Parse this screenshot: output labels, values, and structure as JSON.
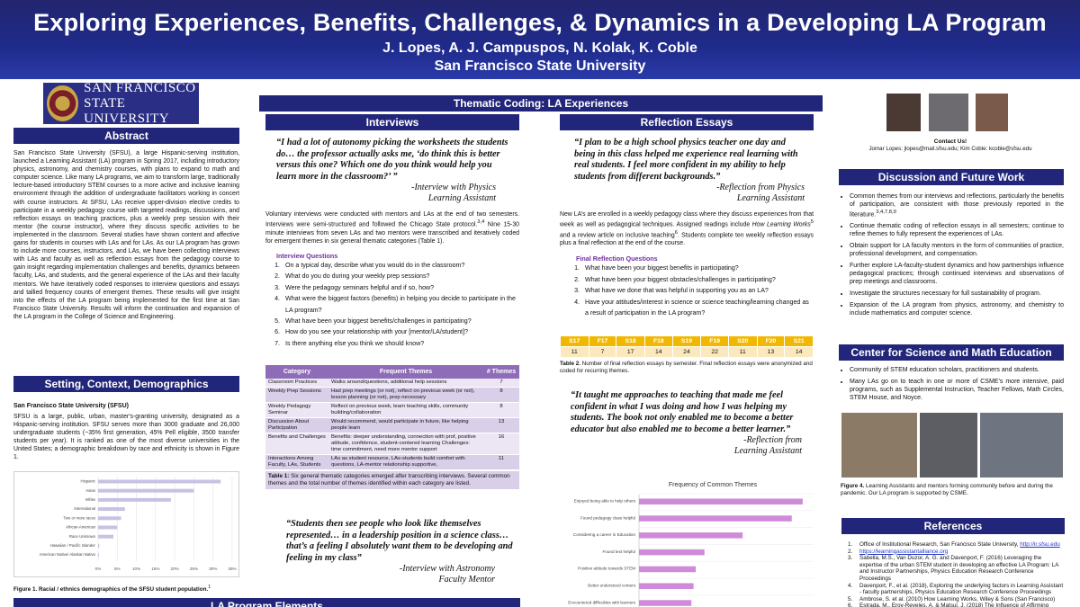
{
  "header": {
    "title": "Exploring Experiences, Benefits, Challenges, & Dynamics in a Developing LA Program",
    "authors": "J. Lopes, A. J. Campuspos, N. Kolak, K. Coble",
    "institution": "San Francisco State University"
  },
  "logo": {
    "line1": "San Francisco",
    "line2": "State University"
  },
  "abstract": {
    "heading": "Abstract",
    "text": "San Francisco State University (SFSU), a large Hispanic-serving institution, launched a Learning Assistant (LA) program in Spring 2017, including introductory physics, astronomy, and chemistry courses, with plans to expand to math and computer science. Like many LA programs, we aim to transform large, traditionally lecture-based introductory STEM courses to a more active and inclusive learning environment through the addition of undergraduate facilitators working in concert with course instructors. At SFSU, LAs receive upper-division elective credits to participate in a weekly pedagogy course with targeted readings, discussions, and reflection essays on teaching practices, plus a weekly prep session with their mentor (the course instructor), where they discuss specific activities to be implemented in the classroom. Several studies have shown content and affective gains for students in courses with LAs and for LAs. As our LA program has grown to include more courses, instructors, and LAs, we have been collecting interviews with LAs and faculty as well as reflection essays from the pedagogy course to gain insight regarding implementation challenges and benefits, dynamics between faculty, LAs, and students, and the general experience of the LAs and their faculty mentors. We have iteratively coded responses to interview questions and essays and tallied frequency counts of emergent themes. These results will give insight into the effects of the LA program being implemented for the first time at San Francisco State University. Results will inform the continuation and expansion of the LA program in the College of Science and Engineering."
  },
  "setting": {
    "heading": "Setting, Context, Demographics",
    "subheading": "San Francisco State University (SFSU)",
    "text": "SFSU is a large, public, urban, master's-granting university, designated as a Hispanic-serving institution. SFSU serves more than 3000 graduate and 26,000 undergraduate students (~35% first generation, 45% Pell eligible, 3500 transfer students per year). It is ranked as one of the most diverse universities in the United States; a demographic breakdown by race and ethnicity is shown in Figure 1."
  },
  "chart_data": [
    {
      "type": "bar",
      "orientation": "horizontal",
      "categories": [
        "Hispanic",
        "Asian",
        "White",
        "International",
        "Two or more races",
        "African-American",
        "Race Unknown",
        "Hawaiian / Pacific Islander",
        "American Native/ Alaskan Native"
      ],
      "values": [
        32,
        25,
        19,
        7,
        6,
        5,
        4,
        0.3,
        0.2
      ],
      "xticks": [
        "0%",
        "5%",
        "10%",
        "15%",
        "20%",
        "25%",
        "30%",
        "35%"
      ],
      "xlim": [
        0,
        35
      ],
      "caption": "Figure 1. Racial / ethnics demographics of the SFSU student population.",
      "caption_ref": "1"
    },
    {
      "type": "bar",
      "orientation": "horizontal",
      "title": "Frequency of Common Themes",
      "categories": [
        "Enjoyed being able to help others",
        "Found pedagogy class helpful",
        "Considering a career in Education",
        "Found text helpful",
        "Positive attitude towards STEM",
        "Better understood content",
        "Encountered difficulties with learners"
      ],
      "values": [
        15,
        14,
        9.5,
        6,
        5.2,
        5,
        4.8
      ],
      "xlim": [
        0,
        16
      ]
    }
  ],
  "fig1_ref": "1",
  "thematic": {
    "heading": "Thematic Coding: LA Experiences"
  },
  "interviews": {
    "heading": "Interviews",
    "quote1": "“I had a lot of autonomy picking the worksheets the students do… the professor actually asks me, ‘do think this is better versus this one?  Which one do you think would help you learn more in the classroom?’ ”",
    "attr1a": "-Interview with Physics",
    "attr1b": "Learning Assistant",
    "text_a": "Voluntary interviews were conducted with mentors and LAs at the end of two semesters. Interviews were semi-structured and followed the Chicago State protocol.",
    "text_ref": "3,4",
    "text_b": " Nine 15-30 minute interviews from seven LAs and two mentors were transcribed and iteratively coded for emergent themes in six general thematic categories (Table 1).",
    "qhead": "Interview Questions",
    "questions": [
      "On a typical day, describe what you would do in the classroom?",
      "What do you do during your weekly prep sessions?",
      "Were the pedagogy seminars helpful and if so, how?",
      "What were the biggest factors (benefits) in helping you decide to participate in the LA program?",
      "What have been your biggest benefits/challenges in participating?",
      "How do you see your relationship with your [mentor/LA/student]?",
      "Is there anything else you think we should know?"
    ],
    "table": {
      "headers": [
        "Category",
        "Frequent Themes",
        "# Themes"
      ],
      "rows": [
        [
          "Classroom Practices",
          "Walks around/questions, additional help sessions",
          "7"
        ],
        [
          "Weekly Prep Sessions",
          "Had prep meetings (or not), reflect on previous week (or not), lesson planning (or not), prep necessary",
          "8"
        ],
        [
          "Weekly Pedagogy Seminar",
          "Reflect on previous week, learn teaching skills, community building/collaboration",
          "8"
        ],
        [
          "Discussion About Participation",
          "Would recommend, would participate in future, like helping people learn",
          "13"
        ],
        [
          "Benefits and Challenges",
          "Benefits: deeper understanding, connection with prof, positive attitude, confidence, student-centered learning Challenges: time commitment, need more mentor support",
          "16"
        ],
        [
          "Interactions Among Faculty, LAs, Students",
          "LAs as student resource, LAs-students build comfort with questions, LA-mentor relationship supportive,",
          "11"
        ]
      ],
      "caption_label": "Table 1:",
      "caption": " Six general thematic categories emerged after transcribing interviews. Several common themes and the total number of themes identified within each category are listed."
    },
    "quote2": "“Students then see people who look like themselves represented… in a leadership position in a science class… that’s a feeling I absolutely want them to be developing and feeling in my class”",
    "attr2a": "-Interview with Astronomy",
    "attr2b": "Faculty Mentor"
  },
  "essays": {
    "heading": "Reflection Essays",
    "quote1": "“I plan to be a high school physics teacher one day and being in this class helped me experience real learning with real students. I feel more confident in my ability to help students from different backgrounds.”",
    "attr1a": "-Reflection from Physics",
    "attr1b": "Learning Assistant",
    "text_a": "New LA’s are enrolled in a weekly pedagogy class where they discuss experiences from that week as well as pedagogical techniques. Assigned readings include ",
    "text_book": "How Learning Works",
    "text_ref1": "5",
    "text_b": " and a review article on inclusive teaching",
    "text_ref2": "6",
    "text_c": ". Students complete ten weekly reflection essays plus a final reflection at the end of the course.",
    "qhead": "Final Reflection Questions",
    "questions": [
      "What have been your biggest benefits in participating?",
      "What have been your biggest obstacles/challenges in participating?",
      "What have we done that was helpful in supporting you as an LA?",
      "Have your attitudes/interest in science or science teaching/learning changed as a result of participation in the LA program?"
    ],
    "semesters": [
      "S17",
      "F17",
      "S18",
      "F18",
      "S19",
      "F19",
      "S20",
      "F20",
      "S21"
    ],
    "counts": [
      "11",
      "7",
      "17",
      "14",
      "24",
      "22",
      "11",
      "13",
      "14"
    ],
    "table_caption_label": "Table 2.",
    "table_caption": " Number of final reflection essays by semester. Final reflection essays were anonymized and coded for recurring themes.",
    "quote2": "“It taught me approaches to teaching that made me feel confident in what I was doing and how I was helping my students. The book not only enabled me to become a better educator but also enabled me to become a better learner.”",
    "attr2a": "-Reflection from",
    "attr2b": "Learning Assistant"
  },
  "la_elements": {
    "heading": "LA Program Elements"
  },
  "contact": {
    "title": "Contact Us!",
    "line": "Jomar Lopes: jlopes@mail.sfsu.edu; Kim Coble: kcoble@sfsu.edu"
  },
  "discussion": {
    "heading": "Discussion and Future Work",
    "items": [
      "Common themes from our interviews and reflections, particularly the benefits of participation, are consistent with those previously reported in the literature.",
      "Continue thematic coding of reflection essays in all semesters; continue to refine themes to fully represent the experiences of LAs.",
      "Obtain support for LA faculty mentors in the form of communities of practice, professional development, and compensation.",
      "Further explore LA-faculty-student dynamics and how partnerships influence pedagogical practices; through continued interviews and observations of prep meetings and classrooms.",
      "Investigate the structures necessary for full sustainability of program.",
      "Expansion of the LA program from physics, astronomy, and chemistry to include mathematics and computer science."
    ],
    "item1_ref": "3,4,7,8,9"
  },
  "csme": {
    "heading": "Center for Science and Math Education",
    "items": [
      "Community of STEM education scholars, practitioners and students.",
      "Many LAs go on to teach in one or more of CSME’s more intensive, paid programs, such as Supplemental Instruction, Teacher Fellows, Math Circles, STEM House, and Noyce."
    ],
    "caption_label": "Figure 4.",
    "caption": " Learning Assistants and mentors forming community before and during the pandemic. Our LA program is supported by CSME."
  },
  "references": {
    "heading": "References",
    "items": [
      "Office of Institutional Research, San Francisco State University, http://ir.sfsu.edu",
      "https://learningassistantalliance.org",
      "Sabella, M.S., Van Duzor, A. G. and Davenport, F. (2016) Leveraging the expertise of the urban STEM student in developing an effective LA Program: LA and Instructor Partnerships, Physics Education Research Conference Proceedings",
      "Davenport, F., et al. (2018), Exploring the underlying factors in Learning Assistant - faculty partnerships, Physics Education Research Conference Proceedings",
      "Ambrose, S. et al. (2010) How Learning Works, Wiley & Sons (San Francisco)",
      "Estrada, M., Eroy-Reveles, A. & Matsui, J. (2018) The Influence of Affirming"
    ]
  }
}
